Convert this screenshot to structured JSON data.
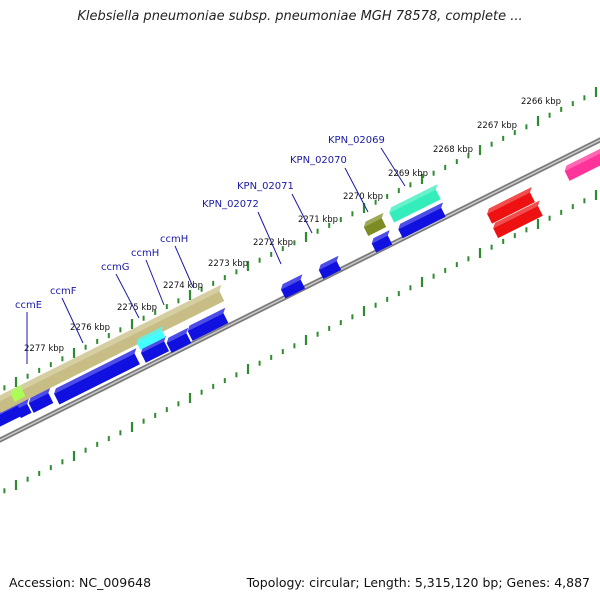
{
  "title": "Klebsiella pneumoniae subsp. pneumoniae MGH 78578, complete ...",
  "footer": {
    "accession": "Accession: NC_009648",
    "summary": "Topology: circular; Length: 5,315,120 bp; Genes: 4,887"
  },
  "colors": {
    "backbone": "#7a7a7a",
    "tick": "#2e8b2e",
    "label": "#1a1aa6",
    "kbp": "#111111"
  },
  "kbp_labels": [
    {
      "text": "2266 kbp"
    },
    {
      "text": "2267 kbp"
    },
    {
      "text": "2268 kbp"
    },
    {
      "text": "2269 kbp"
    },
    {
      "text": "2270 kbp"
    },
    {
      "text": "2271 kbp"
    },
    {
      "text": "2272 kbp"
    },
    {
      "text": "2273 kbp"
    },
    {
      "text": "2274 kbp"
    },
    {
      "text": "2275 kbp"
    },
    {
      "text": "2276 kbp"
    },
    {
      "text": "2277 kbp"
    }
  ],
  "gene_labels": [
    {
      "text": "KPN_02069"
    },
    {
      "text": "KPN_02070"
    },
    {
      "text": "KPN_02071"
    },
    {
      "text": "KPN_02072"
    },
    {
      "text": "ccmH"
    },
    {
      "text": "ccmH"
    },
    {
      "text": "ccmG"
    },
    {
      "text": "ccmF"
    },
    {
      "text": "ccmE"
    }
  ],
  "features": [
    {
      "color": "#1010e0"
    },
    {
      "color": "#1010e0"
    },
    {
      "color": "#1010e0"
    },
    {
      "color": "#1010e0"
    },
    {
      "color": "#1010e0"
    },
    {
      "color": "#1010e0"
    },
    {
      "color": "#1010e0"
    },
    {
      "color": "#1010e0"
    },
    {
      "color": "#1010e0"
    },
    {
      "color": "#1010e0"
    },
    {
      "color": "#1010e0"
    },
    {
      "color": "#c8bd84"
    },
    {
      "color": "#33eebb"
    },
    {
      "color": "#7c8c22"
    },
    {
      "color": "#44ffff"
    },
    {
      "color": "#aaff55"
    },
    {
      "color": "#ee1111"
    },
    {
      "color": "#ee1111"
    },
    {
      "color": "#ff3399"
    }
  ]
}
